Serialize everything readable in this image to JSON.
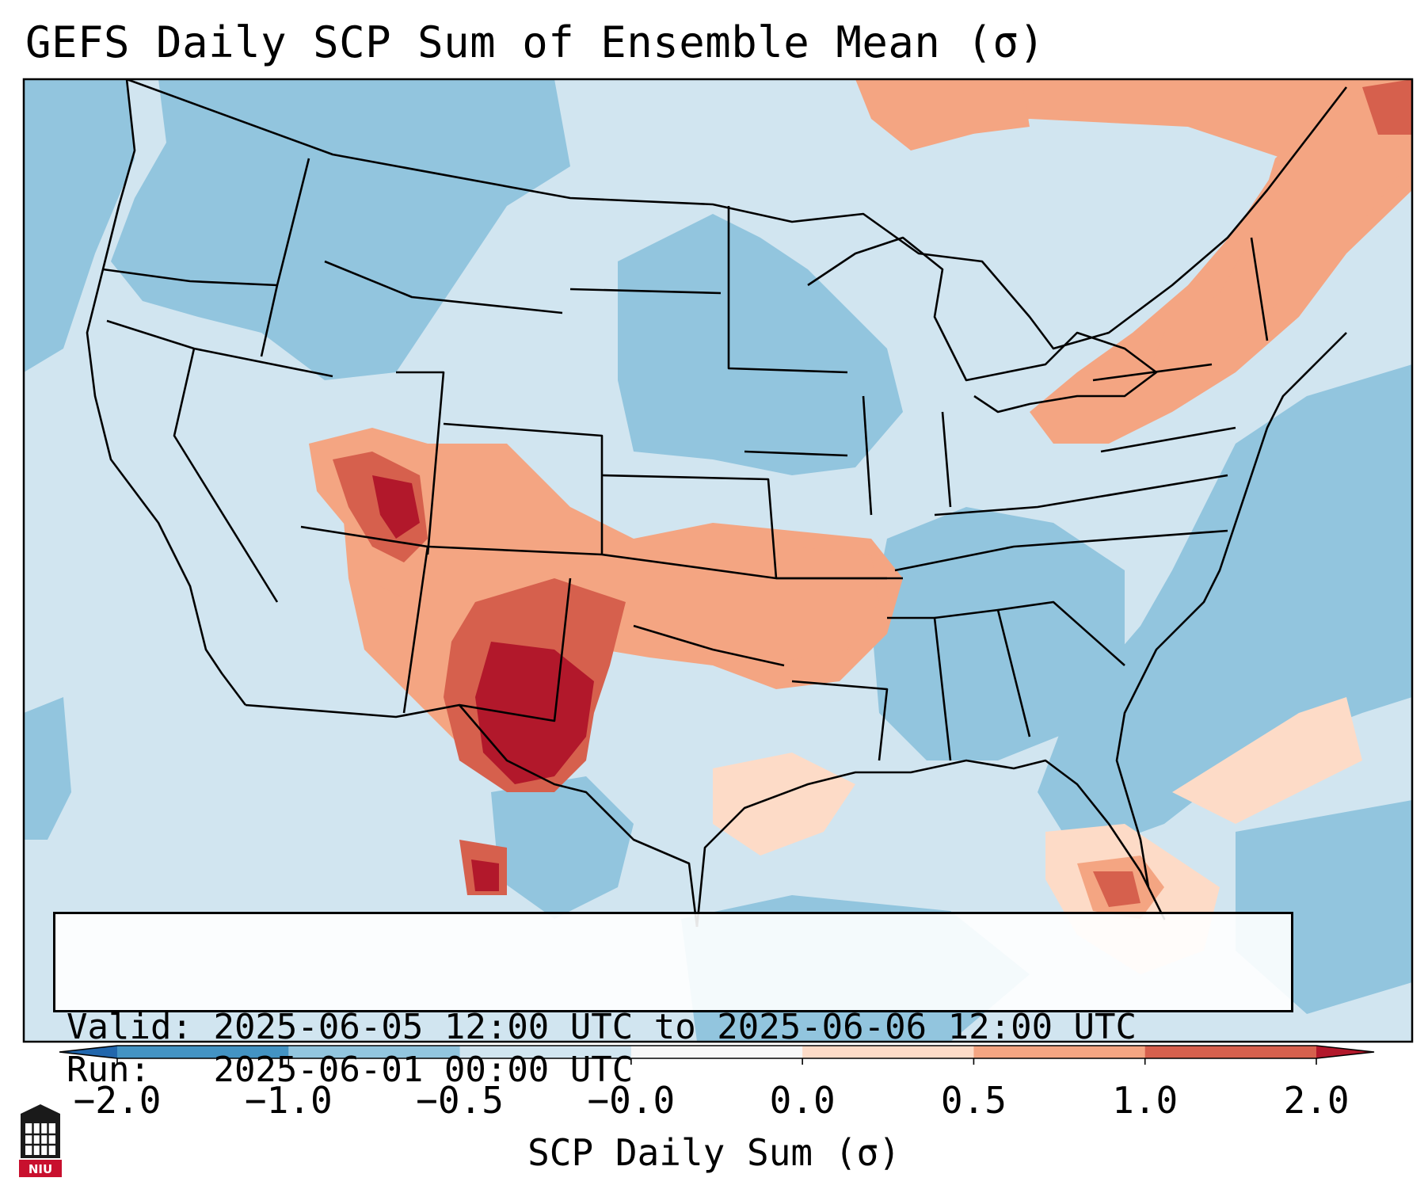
{
  "title": "GEFS Daily SCP Sum of Ensemble Mean (σ)",
  "info": {
    "valid_label": "Valid:",
    "valid_value": "2025-06-05 12:00 UTC to 2025-06-06 12:00 UTC",
    "run_label": "Run:",
    "run_value": "2025-06-01 00:00 UTC"
  },
  "colorbar": {
    "label": "SCP Daily Sum (σ)",
    "ticks": [
      "−2.0",
      "−1.0",
      "−0.5",
      "−0.0",
      "0.0",
      "0.5",
      "1.0",
      "2.0"
    ],
    "bins": [
      {
        "range": "-2.0 to -1.0",
        "color": "#4393c3"
      },
      {
        "range": "-1.0 to -0.5",
        "color": "#92c5de"
      },
      {
        "range": "-0.5 to -0.0",
        "color": "#d1e5f0"
      },
      {
        "range": "-0.0 to 0.0",
        "color": "#f7f7f7"
      },
      {
        "range": "0.0 to 0.5",
        "color": "#fddbc7"
      },
      {
        "range": "0.5 to 1.0",
        "color": "#f4a582"
      },
      {
        "range": "1.0 to 2.0",
        "color": "#d6604d"
      }
    ],
    "under_color": "#2166ac",
    "over_color": "#b2182b"
  },
  "logo": {
    "text": "NIU",
    "color": "#c8102e"
  },
  "regions": [
    {
      "name": "western-atlantic-negative",
      "color": "#92c5de"
    },
    {
      "name": "pacific-northwest-negative",
      "color": "#92c5de"
    },
    {
      "name": "northern-plains-negative",
      "color": "#92c5de"
    },
    {
      "name": "southeast-negative",
      "color": "#92c5de"
    },
    {
      "name": "utah-colorado-positive",
      "color": "#f4a582"
    },
    {
      "name": "utah-core-positive",
      "color": "#d6604d"
    },
    {
      "name": "texas-panhandle-positive",
      "color": "#d6604d"
    },
    {
      "name": "west-texas-core-positive",
      "color": "#b2182b"
    },
    {
      "name": "southern-plains-band-positive",
      "color": "#f4a582"
    },
    {
      "name": "northeast-positive",
      "color": "#f4a582"
    },
    {
      "name": "gulf-florida-positive",
      "color": "#fddbc7"
    }
  ]
}
